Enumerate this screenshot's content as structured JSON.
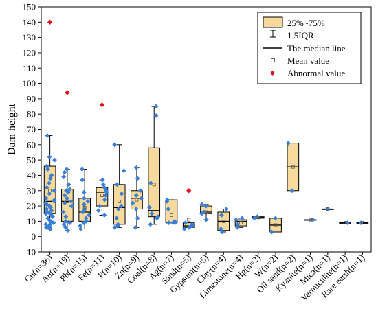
{
  "chart_data": {
    "type": "box",
    "title": "",
    "xlabel": "",
    "ylabel": "Dam height",
    "ylim": [
      -10,
      150
    ],
    "yticks": [
      -10,
      0,
      10,
      20,
      30,
      40,
      50,
      60,
      70,
      80,
      90,
      100,
      110,
      120,
      130,
      140,
      150
    ],
    "grid": false,
    "legend_position": "top-right",
    "legend": {
      "box_label": "25%~75%",
      "whisker_label": "1.5IQR",
      "median_label": "The median line",
      "mean_label": "Mean value",
      "outlier_label": "Abnormal value"
    },
    "colors": {
      "box_fill": "#f6d99c",
      "point": "#3a7fd5",
      "outlier": "#e0141e",
      "line": "#000000"
    },
    "categories": [
      {
        "label": "Cu(n=36)",
        "q1": 15,
        "median": 23,
        "q3": 46,
        "whisker_low": 5,
        "whisker_high": 66,
        "mean": 30,
        "points": [
          5,
          5,
          6,
          6,
          7,
          8,
          8,
          9,
          10,
          11,
          12,
          13,
          14,
          15,
          15,
          16,
          17,
          18,
          19,
          20,
          21,
          22,
          23,
          24,
          25,
          28,
          30,
          32,
          35,
          38,
          40,
          44,
          46,
          50,
          52,
          66
        ],
        "outliers": [
          140
        ]
      },
      {
        "label": "Au(n=19)",
        "q1": 10,
        "median": 23,
        "q3": 31,
        "whisker_low": 4,
        "whisker_high": 44,
        "mean": 23,
        "points": [
          4,
          6,
          8,
          9,
          10,
          13,
          16,
          20,
          22,
          23,
          25,
          27,
          29,
          30,
          31,
          34,
          39,
          42,
          44
        ],
        "outliers": [
          94
        ]
      },
      {
        "label": "Pb(n=15)",
        "q1": 10,
        "median": 16,
        "q3": 25,
        "whisker_low": 5,
        "whisker_high": 44,
        "mean": 19,
        "points": [
          5,
          7,
          9,
          10,
          12,
          14,
          16,
          17,
          18,
          21,
          23,
          25,
          29,
          37,
          44
        ],
        "outliers": []
      },
      {
        "label": "Fe(n=11)",
        "q1": 20,
        "median": 29,
        "q3": 32,
        "whisker_low": 14,
        "whisker_high": 37,
        "mean": 27,
        "points": [
          14,
          17,
          20,
          24,
          27,
          29,
          30,
          31,
          32,
          34,
          37
        ],
        "outliers": [
          86
        ]
      },
      {
        "label": "P(n=10)",
        "q1": 8,
        "median": 19,
        "q3": 34,
        "whisker_low": 6,
        "whisker_high": 60,
        "mean": 23,
        "points": [
          6,
          7,
          8,
          12,
          18,
          20,
          28,
          34,
          43,
          60
        ],
        "outliers": []
      },
      {
        "label": "Zn(n=9)",
        "q1": 18,
        "median": 25,
        "q3": 30,
        "whisker_low": 6,
        "whisker_high": 45,
        "mean": 24,
        "points": [
          6,
          12,
          18,
          22,
          25,
          27,
          30,
          38,
          45
        ],
        "outliers": []
      },
      {
        "label": "Coal(n=8)",
        "q1": 13,
        "median": 17,
        "q3": 58,
        "whisker_low": 8,
        "whisker_high": 85,
        "mean": 34,
        "points": [
          8,
          12,
          13,
          15,
          19,
          35,
          79,
          85
        ],
        "outliers": []
      },
      {
        "label": "Ag(n=7)",
        "q1": 9,
        "median": 9,
        "q3": 24,
        "whisker_low": 9,
        "whisker_high": 24,
        "mean": 14,
        "points": [
          9,
          9,
          9,
          10,
          18,
          23,
          24
        ],
        "outliers": []
      },
      {
        "label": "Sand(n=5)",
        "q1": 6,
        "median": 7,
        "q3": 9,
        "whisker_low": 5,
        "whisker_high": 9,
        "mean": 11,
        "points": [
          5,
          6,
          7,
          8,
          9
        ],
        "outliers": [
          30
        ]
      },
      {
        "label": "Gypsum(n=5)",
        "q1": 15,
        "median": 16,
        "q3": 20,
        "whisker_low": 11,
        "whisker_high": 21,
        "mean": 16,
        "points": [
          11,
          15,
          16,
          20,
          21
        ],
        "outliers": []
      },
      {
        "label": "Clay(n=4)",
        "q1": 4,
        "median": 10,
        "q3": 16,
        "whisker_low": 3,
        "whisker_high": 18,
        "mean": 10,
        "points": [
          3,
          5,
          14,
          18
        ],
        "outliers": []
      },
      {
        "label": "Limestone(n=4)",
        "q1": 7,
        "median": 10,
        "q3": 11,
        "whisker_low": 6,
        "whisker_high": 12,
        "mean": 9,
        "points": [
          6,
          8,
          11,
          12
        ],
        "outliers": []
      },
      {
        "label": "Hg(n=2)",
        "q1": 12,
        "median": 12.5,
        "q3": 13,
        "whisker_low": 12,
        "whisker_high": 13,
        "mean": 12.5,
        "points": [
          12,
          13
        ],
        "outliers": []
      },
      {
        "label": "W(n=2)",
        "q1": 3,
        "median": 7.5,
        "q3": 12,
        "whisker_low": 3,
        "whisker_high": 12,
        "mean": 7.5,
        "points": [
          3,
          12
        ],
        "outliers": []
      },
      {
        "label": "Oil sand(n=2)",
        "q1": 30,
        "median": 45.5,
        "q3": 61,
        "whisker_low": 30,
        "whisker_high": 61,
        "mean": 45.5,
        "points": [
          30,
          61
        ],
        "outliers": []
      },
      {
        "label": "Kyanite(n=1)",
        "q1": 11,
        "median": 11,
        "q3": 11,
        "whisker_low": 11,
        "whisker_high": 11,
        "mean": 11,
        "points": [
          11
        ],
        "outliers": []
      },
      {
        "label": "Mica(n=1)",
        "q1": 18,
        "median": 18,
        "q3": 18,
        "whisker_low": 18,
        "whisker_high": 18,
        "mean": 18,
        "points": [
          18
        ],
        "outliers": []
      },
      {
        "label": "Vermiculite(n=1)",
        "q1": 9,
        "median": 9,
        "q3": 9,
        "whisker_low": 9,
        "whisker_high": 9,
        "mean": 9,
        "points": [
          9
        ],
        "outliers": []
      },
      {
        "label": "Rare earth(n=1)",
        "q1": 9,
        "median": 9,
        "q3": 9,
        "whisker_low": 9,
        "whisker_high": 9,
        "mean": 9,
        "points": [
          9
        ],
        "outliers": []
      }
    ]
  }
}
